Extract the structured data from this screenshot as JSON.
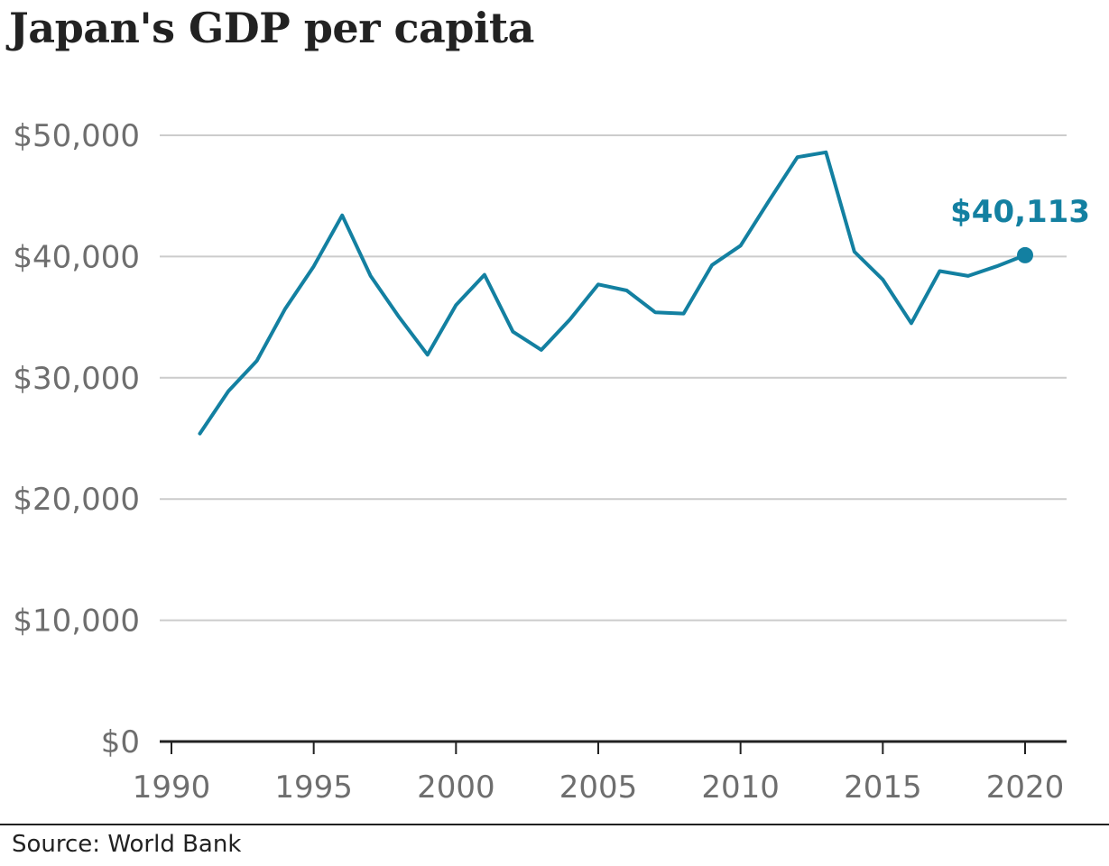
{
  "chart_data": {
    "type": "line",
    "title": "Japan's GDP per capita",
    "source": "Source: World Bank",
    "xlabel": "",
    "ylabel": "",
    "x_ticks": [
      1990,
      1995,
      2000,
      2005,
      2010,
      2015,
      2020
    ],
    "x_tick_labels": [
      "1990",
      "1995",
      "2000",
      "2005",
      "2010",
      "2015",
      "2020"
    ],
    "xlim": [
      1990,
      2021
    ],
    "y_ticks": [
      0,
      10000,
      20000,
      30000,
      40000,
      50000
    ],
    "y_tick_labels": [
      "$0",
      "$10,000",
      "$20,000",
      "$30,000",
      "$40,000",
      "$50,000"
    ],
    "ylim": [
      0,
      50000
    ],
    "grid": true,
    "series": [
      {
        "color": "#1380a1",
        "points": [
          {
            "x": 1991,
            "y": 25400
          },
          {
            "x": 1992,
            "y": 28900
          },
          {
            "x": 1993,
            "y": 31400
          },
          {
            "x": 1994,
            "y": 35700
          },
          {
            "x": 1995,
            "y": 39200
          },
          {
            "x": 1996,
            "y": 43400
          },
          {
            "x": 1997,
            "y": 38400
          },
          {
            "x": 1998,
            "y": 35000
          },
          {
            "x": 1999,
            "y": 31900
          },
          {
            "x": 2000,
            "y": 36000
          },
          {
            "x": 2001,
            "y": 38500
          },
          {
            "x": 2002,
            "y": 33800
          },
          {
            "x": 2003,
            "y": 32300
          },
          {
            "x": 2004,
            "y": 34800
          },
          {
            "x": 2005,
            "y": 37700
          },
          {
            "x": 2006,
            "y": 37200
          },
          {
            "x": 2007,
            "y": 35400
          },
          {
            "x": 2008,
            "y": 35300
          },
          {
            "x": 2009,
            "y": 39300
          },
          {
            "x": 2010,
            "y": 40900
          },
          {
            "x": 2011,
            "y": 44600
          },
          {
            "x": 2012,
            "y": 48200
          },
          {
            "x": 2013,
            "y": 48600
          },
          {
            "x": 2014,
            "y": 40400
          },
          {
            "x": 2015,
            "y": 38100
          },
          {
            "x": 2016,
            "y": 34500
          },
          {
            "x": 2017,
            "y": 38800
          },
          {
            "x": 2018,
            "y": 38400
          },
          {
            "x": 2019,
            "y": 39200
          },
          {
            "x": 2020,
            "y": 40113
          }
        ]
      }
    ],
    "annotation": {
      "x": 2020,
      "y": 40113,
      "text": "$40,113"
    }
  },
  "colors": {
    "line": "#1380a1",
    "grid": "#cccccc",
    "axis": "#222222",
    "tick_text": "#6e6e6e",
    "title_text": "#222222"
  }
}
